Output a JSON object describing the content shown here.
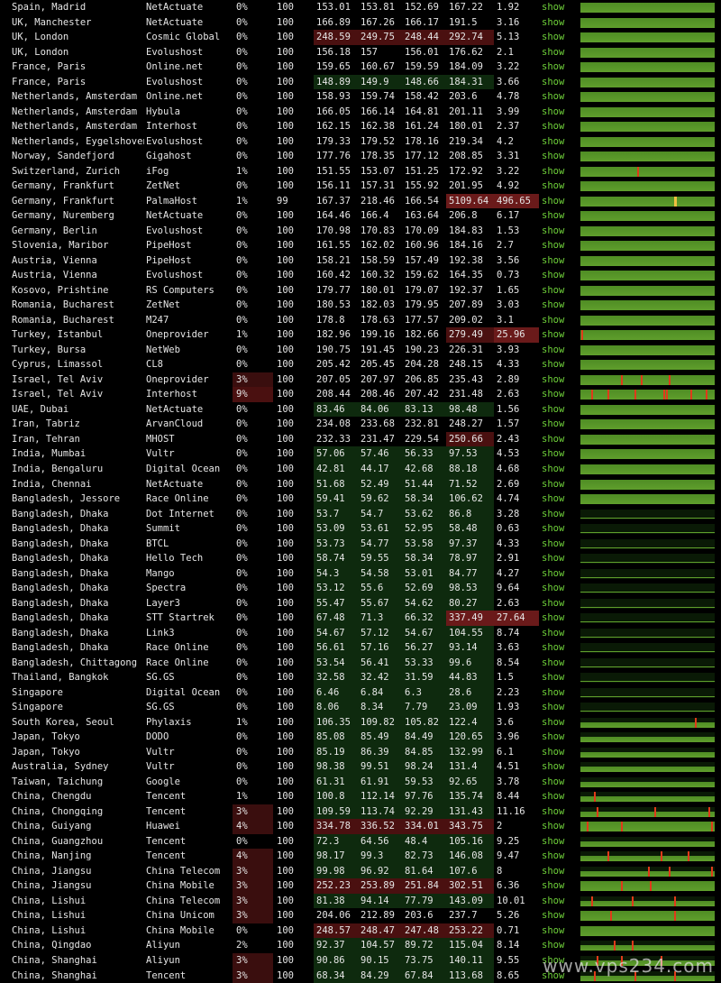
{
  "rows": [
    {
      "loc": "Spain, Madrid",
      "prov": "NetActuate",
      "loss": "0%",
      "snt": "100",
      "v": [
        "153.01",
        "153.81",
        "152.69",
        "167.22",
        "1.92"
      ],
      "show": "show",
      "g": "full"
    },
    {
      "loc": "UK, Manchester",
      "prov": "NetActuate",
      "loss": "0%",
      "snt": "100",
      "v": [
        "166.89",
        "167.26",
        "166.17",
        "191.5",
        "3.16"
      ],
      "show": "show",
      "g": "full"
    },
    {
      "loc": "UK, London",
      "prov": "Cosmic Global",
      "loss": "0%",
      "snt": "100",
      "v": [
        "248.59",
        "249.75",
        "248.44",
        "292.74",
        "5.13"
      ],
      "show": "show",
      "g": "full",
      "hl": true
    },
    {
      "loc": "UK, London",
      "prov": "Evolushost",
      "loss": "0%",
      "snt": "100",
      "v": [
        "156.18",
        "157",
        "156.01",
        "176.62",
        "2.1"
      ],
      "show": "show",
      "g": "full"
    },
    {
      "loc": "France, Paris",
      "prov": "Online.net",
      "loss": "0%",
      "snt": "100",
      "v": [
        "159.65",
        "160.67",
        "159.59",
        "184.09",
        "3.22"
      ],
      "show": "show",
      "g": "full"
    },
    {
      "loc": "France, Paris",
      "prov": "Evolushost",
      "loss": "0%",
      "snt": "100",
      "v": [
        "148.89",
        "149.9",
        "148.66",
        "184.31",
        "3.66"
      ],
      "show": "show",
      "g": "full"
    },
    {
      "loc": "Netherlands, Amsterdam",
      "prov": "Online.net",
      "loss": "0%",
      "snt": "100",
      "v": [
        "158.93",
        "159.74",
        "158.42",
        "203.6",
        "4.78"
      ],
      "show": "show",
      "g": "full"
    },
    {
      "loc": "Netherlands, Amsterdam",
      "prov": "Hybula",
      "loss": "0%",
      "snt": "100",
      "v": [
        "166.05",
        "166.14",
        "164.81",
        "201.11",
        "3.99"
      ],
      "show": "show",
      "g": "full"
    },
    {
      "loc": "Netherlands, Amsterdam",
      "prov": "Interhost",
      "loss": "0%",
      "snt": "100",
      "v": [
        "162.15",
        "162.38",
        "161.24",
        "180.01",
        "2.37"
      ],
      "show": "show",
      "g": "full"
    },
    {
      "loc": "Netherlands, Eygelshoven",
      "prov": "Evolushost",
      "loss": "0%",
      "snt": "100",
      "v": [
        "179.33",
        "179.52",
        "178.16",
        "219.34",
        "4.2"
      ],
      "show": "show",
      "g": "full"
    },
    {
      "loc": "Norway, Sandefjord",
      "prov": "Gigahost",
      "loss": "0%",
      "snt": "100",
      "v": [
        "177.76",
        "178.35",
        "177.12",
        "208.85",
        "3.31"
      ],
      "show": "show",
      "g": "full"
    },
    {
      "loc": "Switzerland, Zurich",
      "prov": "iFog",
      "loss": "1%",
      "snt": "100",
      "v": [
        "151.55",
        "153.07",
        "151.25",
        "172.92",
        "3.22"
      ],
      "show": "show",
      "g": "full",
      "spikes": [
        42
      ]
    },
    {
      "loc": "Germany, Frankfurt",
      "prov": "ZetNet",
      "loss": "0%",
      "snt": "100",
      "v": [
        "156.11",
        "157.31",
        "155.92",
        "201.95",
        "4.92"
      ],
      "show": "show",
      "g": "full"
    },
    {
      "loc": "Germany, Frankfurt",
      "prov": "PalmaHost",
      "loss": "1%",
      "snt": "99",
      "v": [
        "167.37",
        "218.46",
        "166.54",
        "5109.64",
        "496.65"
      ],
      "show": "show",
      "g": "full",
      "yspike": [
        70
      ],
      "hot": true
    },
    {
      "loc": "Germany, Nuremberg",
      "prov": "NetActuate",
      "loss": "0%",
      "snt": "100",
      "v": [
        "164.46",
        "166.4",
        "163.64",
        "206.8",
        "6.17"
      ],
      "show": "show",
      "g": "full"
    },
    {
      "loc": "Germany, Berlin",
      "prov": "Evolushost",
      "loss": "0%",
      "snt": "100",
      "v": [
        "170.98",
        "170.83",
        "170.09",
        "184.83",
        "1.53"
      ],
      "show": "show",
      "g": "full"
    },
    {
      "loc": "Slovenia, Maribor",
      "prov": "PipeHost",
      "loss": "0%",
      "snt": "100",
      "v": [
        "161.55",
        "162.02",
        "160.96",
        "184.16",
        "2.7"
      ],
      "show": "show",
      "g": "full"
    },
    {
      "loc": "Austria, Vienna",
      "prov": "PipeHost",
      "loss": "0%",
      "snt": "100",
      "v": [
        "158.21",
        "158.59",
        "157.49",
        "192.38",
        "3.56"
      ],
      "show": "show",
      "g": "full"
    },
    {
      "loc": "Austria, Vienna",
      "prov": "Evolushost",
      "loss": "0%",
      "snt": "100",
      "v": [
        "160.42",
        "160.32",
        "159.62",
        "164.35",
        "0.73"
      ],
      "show": "show",
      "g": "full"
    },
    {
      "loc": "Kosovo, Prishtine",
      "prov": "RS Computers",
      "loss": "0%",
      "snt": "100",
      "v": [
        "179.77",
        "180.01",
        "179.07",
        "192.37",
        "1.65"
      ],
      "show": "show",
      "g": "full"
    },
    {
      "loc": "Romania, Bucharest",
      "prov": "ZetNet",
      "loss": "0%",
      "snt": "100",
      "v": [
        "180.53",
        "182.03",
        "179.95",
        "207.89",
        "3.03"
      ],
      "show": "show",
      "g": "full"
    },
    {
      "loc": "Romania, Bucharest",
      "prov": "M247",
      "loss": "0%",
      "snt": "100",
      "v": [
        "178.8",
        "178.63",
        "177.57",
        "209.02",
        "3.1"
      ],
      "show": "show",
      "g": "full"
    },
    {
      "loc": "Turkey, Istanbul",
      "prov": "Oneprovider",
      "loss": "1%",
      "snt": "100",
      "v": [
        "182.96",
        "199.16",
        "182.66",
        "279.49",
        "25.96"
      ],
      "show": "show",
      "g": "full",
      "spikes": [
        1
      ],
      "hot5": true
    },
    {
      "loc": "Turkey, Bursa",
      "prov": "NetWeb",
      "loss": "0%",
      "snt": "100",
      "v": [
        "190.75",
        "191.45",
        "190.23",
        "226.31",
        "3.93"
      ],
      "show": "show",
      "g": "full"
    },
    {
      "loc": "Cyprus, Limassol",
      "prov": "CL8",
      "loss": "0%",
      "snt": "100",
      "v": [
        "205.42",
        "205.45",
        "204.28",
        "248.15",
        "4.33"
      ],
      "show": "show",
      "g": "full"
    },
    {
      "loc": "Israel, Tel Aviv",
      "prov": "Oneprovider",
      "loss": "3%",
      "snt": "100",
      "v": [
        "207.05",
        "207.97",
        "206.85",
        "235.43",
        "2.89"
      ],
      "show": "show",
      "g": "full",
      "spikes": [
        30,
        45,
        66
      ]
    },
    {
      "loc": "Israel, Tel Aviv",
      "prov": "Interhost",
      "loss": "9%",
      "snt": "100",
      "v": [
        "208.44",
        "208.46",
        "207.42",
        "231.48",
        "2.63"
      ],
      "show": "show",
      "g": "full",
      "spikes": [
        8,
        20,
        40,
        62,
        64,
        82,
        93
      ],
      "lossHot": true
    },
    {
      "loc": "UAE, Dubai",
      "prov": "NetActuate",
      "loss": "0%",
      "snt": "100",
      "v": [
        "83.46",
        "84.06",
        "83.13",
        "98.48",
        "1.56"
      ],
      "show": "show",
      "g": "full"
    },
    {
      "loc": "Iran, Tabriz",
      "prov": "ArvanCloud",
      "loss": "0%",
      "snt": "100",
      "v": [
        "234.08",
        "233.68",
        "232.81",
        "248.27",
        "1.57"
      ],
      "show": "show",
      "g": "full"
    },
    {
      "loc": "Iran, Tehran",
      "prov": "MHOST",
      "loss": "0%",
      "snt": "100",
      "v": [
        "232.33",
        "231.47",
        "229.54",
        "250.66",
        "2.43"
      ],
      "show": "show",
      "g": "full"
    },
    {
      "loc": "India, Mumbai",
      "prov": "Vultr",
      "loss": "0%",
      "snt": "100",
      "v": [
        "57.06",
        "57.46",
        "56.33",
        "97.53",
        "4.53"
      ],
      "show": "show",
      "g": "full"
    },
    {
      "loc": "India, Bengaluru",
      "prov": "Digital Ocean",
      "loss": "0%",
      "snt": "100",
      "v": [
        "42.81",
        "44.17",
        "42.68",
        "88.18",
        "4.68"
      ],
      "show": "show",
      "g": "full"
    },
    {
      "loc": "India, Chennai",
      "prov": "NetActuate",
      "loss": "0%",
      "snt": "100",
      "v": [
        "51.68",
        "52.49",
        "51.44",
        "71.52",
        "2.69"
      ],
      "show": "show",
      "g": "full"
    },
    {
      "loc": "Bangladesh, Jessore",
      "prov": "Race Online",
      "loss": "0%",
      "snt": "100",
      "v": [
        "59.41",
        "59.62",
        "58.34",
        "106.62",
        "4.74"
      ],
      "show": "show",
      "g": "full"
    },
    {
      "loc": "Bangladesh, Dhaka",
      "prov": "Dot Internet",
      "loss": "0%",
      "snt": "100",
      "v": [
        "53.7",
        "54.7",
        "53.62",
        "86.8",
        "3.28"
      ],
      "show": "show",
      "g": "thin"
    },
    {
      "loc": "Bangladesh, Dhaka",
      "prov": "Summit",
      "loss": "0%",
      "snt": "100",
      "v": [
        "53.09",
        "53.61",
        "52.95",
        "58.48",
        "0.63"
      ],
      "show": "show",
      "g": "thin"
    },
    {
      "loc": "Bangladesh, Dhaka",
      "prov": "BTCL",
      "loss": "0%",
      "snt": "100",
      "v": [
        "53.73",
        "54.77",
        "53.58",
        "97.37",
        "4.33"
      ],
      "show": "show",
      "g": "thin"
    },
    {
      "loc": "Bangladesh, Dhaka",
      "prov": "Hello Tech",
      "loss": "0%",
      "snt": "100",
      "v": [
        "58.74",
        "59.55",
        "58.34",
        "78.97",
        "2.91"
      ],
      "show": "show",
      "g": "thin"
    },
    {
      "loc": "Bangladesh, Dhaka",
      "prov": "Mango",
      "loss": "0%",
      "snt": "100",
      "v": [
        "54.3",
        "54.58",
        "53.01",
        "84.77",
        "4.27"
      ],
      "show": "show",
      "g": "thin"
    },
    {
      "loc": "Bangladesh, Dhaka",
      "prov": "Spectra",
      "loss": "0%",
      "snt": "100",
      "v": [
        "53.12",
        "55.6",
        "52.69",
        "98.53",
        "9.64"
      ],
      "show": "show",
      "g": "thin"
    },
    {
      "loc": "Bangladesh, Dhaka",
      "prov": "Layer3",
      "loss": "0%",
      "snt": "100",
      "v": [
        "55.47",
        "55.67",
        "54.62",
        "80.27",
        "2.63"
      ],
      "show": "show",
      "g": "thin"
    },
    {
      "loc": "Bangladesh, Dhaka",
      "prov": "STT Startrek",
      "loss": "0%",
      "snt": "100",
      "v": [
        "67.48",
        "71.3",
        "66.32",
        "337.49",
        "27.64"
      ],
      "show": "show",
      "g": "thin",
      "hot45": true
    },
    {
      "loc": "Bangladesh, Dhaka",
      "prov": "Link3",
      "loss": "0%",
      "snt": "100",
      "v": [
        "54.67",
        "57.12",
        "54.67",
        "104.55",
        "8.74"
      ],
      "show": "show",
      "g": "thin"
    },
    {
      "loc": "Bangladesh, Dhaka",
      "prov": "Race Online",
      "loss": "0%",
      "snt": "100",
      "v": [
        "56.61",
        "57.16",
        "56.27",
        "93.14",
        "3.63"
      ],
      "show": "show",
      "g": "thin"
    },
    {
      "loc": "Bangladesh, Chittagong",
      "prov": "Race Online",
      "loss": "0%",
      "snt": "100",
      "v": [
        "53.54",
        "56.41",
        "53.33",
        "99.6",
        "8.54"
      ],
      "show": "show",
      "g": "thin"
    },
    {
      "loc": "Thailand, Bangkok",
      "prov": "SG.GS",
      "loss": "0%",
      "snt": "100",
      "v": [
        "32.58",
        "32.42",
        "31.59",
        "44.83",
        "1.5"
      ],
      "show": "show",
      "g": "thin"
    },
    {
      "loc": "Singapore",
      "prov": "Digital Ocean",
      "loss": "0%",
      "snt": "100",
      "v": [
        "6.46",
        "6.84",
        "6.3",
        "28.6",
        "2.23"
      ],
      "show": "show",
      "g": "thin"
    },
    {
      "loc": "Singapore",
      "prov": "SG.GS",
      "loss": "0%",
      "snt": "100",
      "v": [
        "8.06",
        "8.34",
        "7.79",
        "23.09",
        "1.93"
      ],
      "show": "show",
      "g": "thin"
    },
    {
      "loc": "South Korea, Seoul",
      "prov": "Phylaxis",
      "loss": "1%",
      "snt": "100",
      "v": [
        "106.35",
        "109.82",
        "105.82",
        "122.4",
        "3.6"
      ],
      "show": "show",
      "g": "half",
      "spikes": [
        85
      ]
    },
    {
      "loc": "Japan, Tokyo",
      "prov": "DODO",
      "loss": "0%",
      "snt": "100",
      "v": [
        "85.08",
        "85.49",
        "84.49",
        "120.65",
        "3.96"
      ],
      "show": "show",
      "g": "half"
    },
    {
      "loc": "Japan, Tokyo",
      "prov": "Vultr",
      "loss": "0%",
      "snt": "100",
      "v": [
        "85.19",
        "86.39",
        "84.85",
        "132.99",
        "6.1"
      ],
      "show": "show",
      "g": "half"
    },
    {
      "loc": "Australia, Sydney",
      "prov": "Vultr",
      "loss": "0%",
      "snt": "100",
      "v": [
        "98.38",
        "99.51",
        "98.24",
        "131.4",
        "4.51"
      ],
      "show": "show",
      "g": "half"
    },
    {
      "loc": "Taiwan, Taichung",
      "prov": "Google",
      "loss": "0%",
      "snt": "100",
      "v": [
        "61.31",
        "61.91",
        "59.53",
        "92.65",
        "3.78"
      ],
      "show": "show",
      "g": "half"
    },
    {
      "loc": "China, Chengdu",
      "prov": "Tencent",
      "loss": "1%",
      "snt": "100",
      "v": [
        "100.8",
        "112.14",
        "97.76",
        "135.74",
        "8.44"
      ],
      "show": "show",
      "g": "half",
      "spikes": [
        10
      ]
    },
    {
      "loc": "China, Chongqing",
      "prov": "Tencent",
      "loss": "3%",
      "snt": "100",
      "v": [
        "109.59",
        "113.74",
        "92.29",
        "131.43",
        "11.16"
      ],
      "show": "show",
      "g": "half",
      "spikes": [
        12,
        55,
        95
      ]
    },
    {
      "loc": "China, Guiyang",
      "prov": "Huawei",
      "loss": "4%",
      "snt": "100",
      "v": [
        "334.78",
        "336.52",
        "334.01",
        "343.75",
        "2"
      ],
      "show": "show",
      "g": "full",
      "spikes": [
        5,
        30,
        97
      ],
      "hl": true
    },
    {
      "loc": "China, Guangzhou",
      "prov": "Tencent",
      "loss": "0%",
      "snt": "100",
      "v": [
        "72.3",
        "64.56",
        "48.4",
        "105.16",
        "9.25"
      ],
      "show": "show",
      "g": "half"
    },
    {
      "loc": "China, Nanjing",
      "prov": "Tencent",
      "loss": "4%",
      "snt": "100",
      "v": [
        "98.17",
        "99.3",
        "82.73",
        "146.08",
        "9.47"
      ],
      "show": "show",
      "g": "half",
      "spikes": [
        20,
        60,
        80
      ]
    },
    {
      "loc": "China, Jiangsu",
      "prov": "China Telecom",
      "loss": "3%",
      "snt": "100",
      "v": [
        "99.98",
        "96.92",
        "81.64",
        "107.6",
        "8"
      ],
      "show": "show",
      "g": "half",
      "spikes": [
        50,
        66,
        97
      ]
    },
    {
      "loc": "China, Jiangsu",
      "prov": "China Mobile",
      "loss": "3%",
      "snt": "100",
      "v": [
        "252.23",
        "253.89",
        "251.84",
        "302.51",
        "6.36"
      ],
      "show": "show",
      "g": "full",
      "spikes": [
        30,
        52
      ],
      "hl": true
    },
    {
      "loc": "China, Lishui",
      "prov": "China Telecom",
      "loss": "3%",
      "snt": "100",
      "v": [
        "81.38",
        "94.14",
        "77.79",
        "143.09",
        "10.01"
      ],
      "show": "show",
      "g": "half",
      "spikes": [
        8,
        38,
        70
      ]
    },
    {
      "loc": "China, Lishui",
      "prov": "China Unicom",
      "loss": "3%",
      "snt": "100",
      "v": [
        "204.06",
        "212.89",
        "203.6",
        "237.7",
        "5.26"
      ],
      "show": "show",
      "g": "full",
      "spikes": [
        22,
        70
      ]
    },
    {
      "loc": "China, Lishui",
      "prov": "China Mobile",
      "loss": "0%",
      "snt": "100",
      "v": [
        "248.57",
        "248.47",
        "247.48",
        "253.22",
        "0.71"
      ],
      "show": "show",
      "g": "full",
      "hl": true
    },
    {
      "loc": "China, Qingdao",
      "prov": "Aliyun",
      "loss": "2%",
      "snt": "100",
      "v": [
        "92.37",
        "104.57",
        "89.72",
        "115.04",
        "8.14"
      ],
      "show": "show",
      "g": "half",
      "spikes": [
        25,
        38
      ]
    },
    {
      "loc": "China, Shanghai",
      "prov": "Aliyun",
      "loss": "3%",
      "snt": "100",
      "v": [
        "90.86",
        "90.15",
        "73.75",
        "140.11",
        "9.55"
      ],
      "show": "show",
      "g": "half",
      "spikes": [
        12,
        30,
        60
      ]
    },
    {
      "loc": "China, Shanghai",
      "prov": "Tencent",
      "loss": "3%",
      "snt": "100",
      "v": [
        "68.34",
        "84.29",
        "67.84",
        "113.68",
        "8.65"
      ],
      "show": "show",
      "g": "half",
      "spikes": [
        10,
        40,
        70
      ]
    }
  ],
  "watermark": "www.vps234.com"
}
